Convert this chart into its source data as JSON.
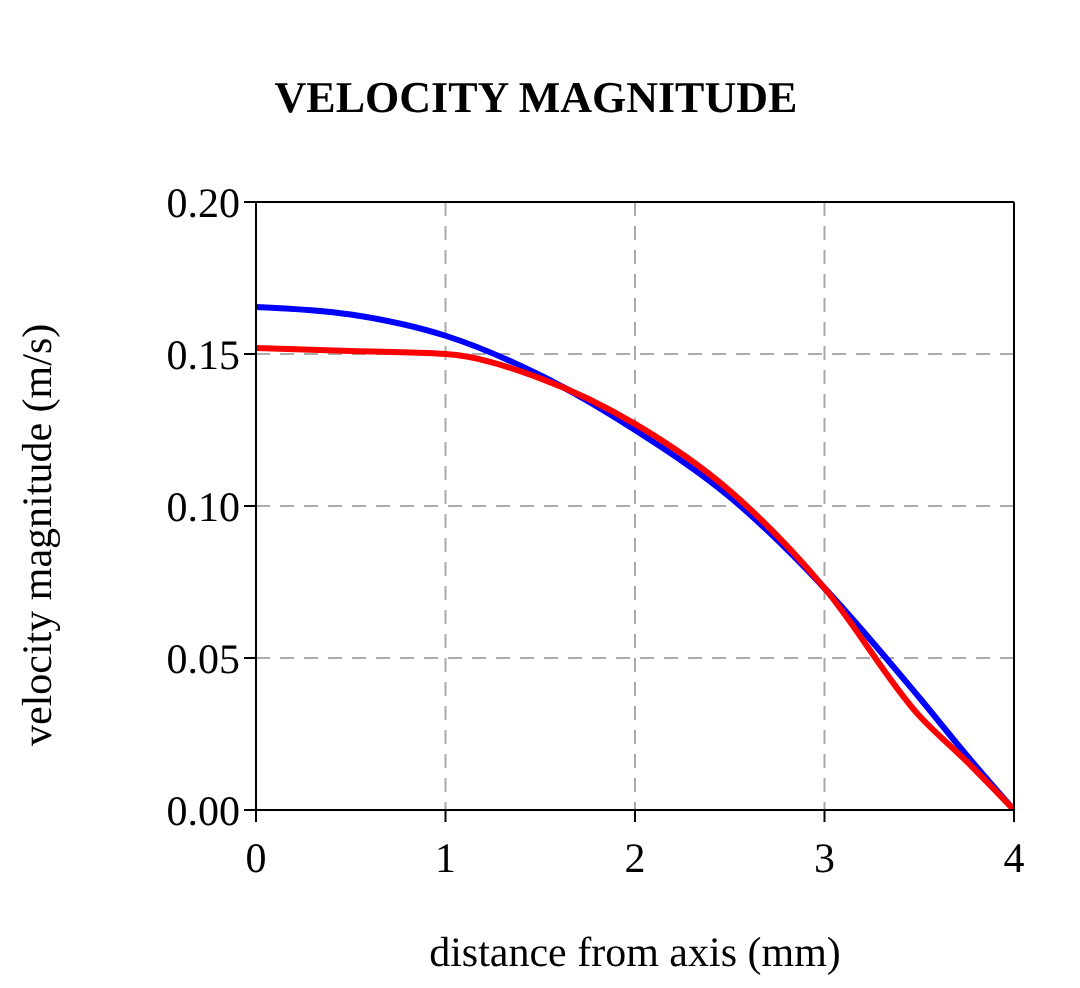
{
  "chart_data": {
    "type": "line",
    "title": "VELOCITY MAGNITUDE",
    "xlabel": "distance from axis (mm)",
    "ylabel": "velocity magnitude (m/s)",
    "x": [
      0,
      0.5,
      1,
      1.5,
      2,
      2.5,
      3,
      3.5,
      3.75,
      4
    ],
    "series": [
      {
        "color": "#0000ff",
        "values": [
          0.1655,
          0.163,
          0.156,
          0.143,
          0.125,
          0.103,
          0.073,
          0.037,
          0.018,
          0
        ]
      },
      {
        "color": "#ff0000",
        "values": [
          0.152,
          0.151,
          0.15,
          0.142,
          0.127,
          0.105,
          0.073,
          0.031,
          0.016,
          0
        ]
      }
    ],
    "xlim": [
      0,
      4
    ],
    "xticks": [
      0,
      1,
      2,
      3,
      4
    ],
    "ylim": [
      0,
      0.2
    ],
    "yticks": [
      {
        "value": 0,
        "label": "0.00"
      },
      0.05,
      {
        "value": 0.1,
        "label": "0.10"
      },
      0.15,
      {
        "value": 0.2,
        "label": "0.20"
      }
    ],
    "grid": true,
    "legend": false,
    "marker": "none",
    "line_style": "solid"
  }
}
